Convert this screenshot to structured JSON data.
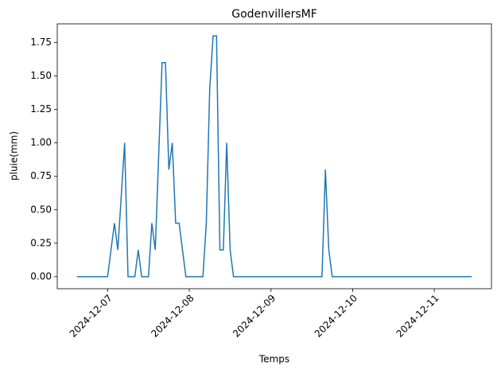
{
  "chart_data": {
    "type": "line",
    "title": "GodenvillersMF",
    "x_label": "Temps",
    "y_label": "pluie(mm)",
    "x": [
      "2024-12-06 15:00",
      "2024-12-07 00:00",
      "2024-12-07 02:00",
      "2024-12-07 03:00",
      "2024-12-07 05:00",
      "2024-12-07 06:00",
      "2024-12-07 08:00",
      "2024-12-07 09:00",
      "2024-12-07 10:00",
      "2024-12-07 12:00",
      "2024-12-07 13:00",
      "2024-12-07 14:00",
      "2024-12-07 16:00",
      "2024-12-07 17:00",
      "2024-12-07 18:00",
      "2024-12-07 19:00",
      "2024-12-07 20:00",
      "2024-12-07 21:00",
      "2024-12-07 23:00",
      "2024-12-08 04:00",
      "2024-12-08 05:00",
      "2024-12-08 06:00",
      "2024-12-08 07:00",
      "2024-12-08 08:00",
      "2024-12-08 09:00",
      "2024-12-08 10:00",
      "2024-12-08 11:00",
      "2024-12-08 12:00",
      "2024-12-08 13:00",
      "2024-12-09 15:00",
      "2024-12-09 16:00",
      "2024-12-09 17:00",
      "2024-12-09 18:00",
      "2024-12-11 11:00"
    ],
    "series": [
      {
        "color": "#1f77b4",
        "values": [
          0,
          0,
          0.4,
          0.2,
          1.0,
          0,
          0,
          0.2,
          0,
          0,
          0.4,
          0.2,
          1.6,
          1.6,
          0.8,
          1.0,
          0.4,
          0.4,
          0,
          0,
          0.4,
          1.4,
          1.8,
          1.8,
          0.2,
          0.2,
          1.0,
          0.2,
          0,
          0,
          0.8,
          0.2,
          0,
          0
        ]
      }
    ],
    "xlim": [
      "2024-12-06 09:12",
      "2024-12-11 16:48"
    ],
    "xticks": [
      "2024-12-07",
      "2024-12-08",
      "2024-12-09",
      "2024-12-10",
      "2024-12-11"
    ],
    "ylim": [
      -0.09,
      1.89
    ],
    "yticks": [
      {
        "value": 0,
        "label": "0.00"
      },
      {
        "value": 0.25,
        "label": "0.25"
      },
      {
        "value": 0.5,
        "label": "0.50"
      },
      {
        "value": 0.75,
        "label": "0.75"
      },
      {
        "value": 1,
        "label": "1.00"
      },
      {
        "value": 1.25,
        "label": "1.25"
      },
      {
        "value": 1.5,
        "label": "1.50"
      },
      {
        "value": 1.75,
        "label": "1.75"
      }
    ]
  }
}
